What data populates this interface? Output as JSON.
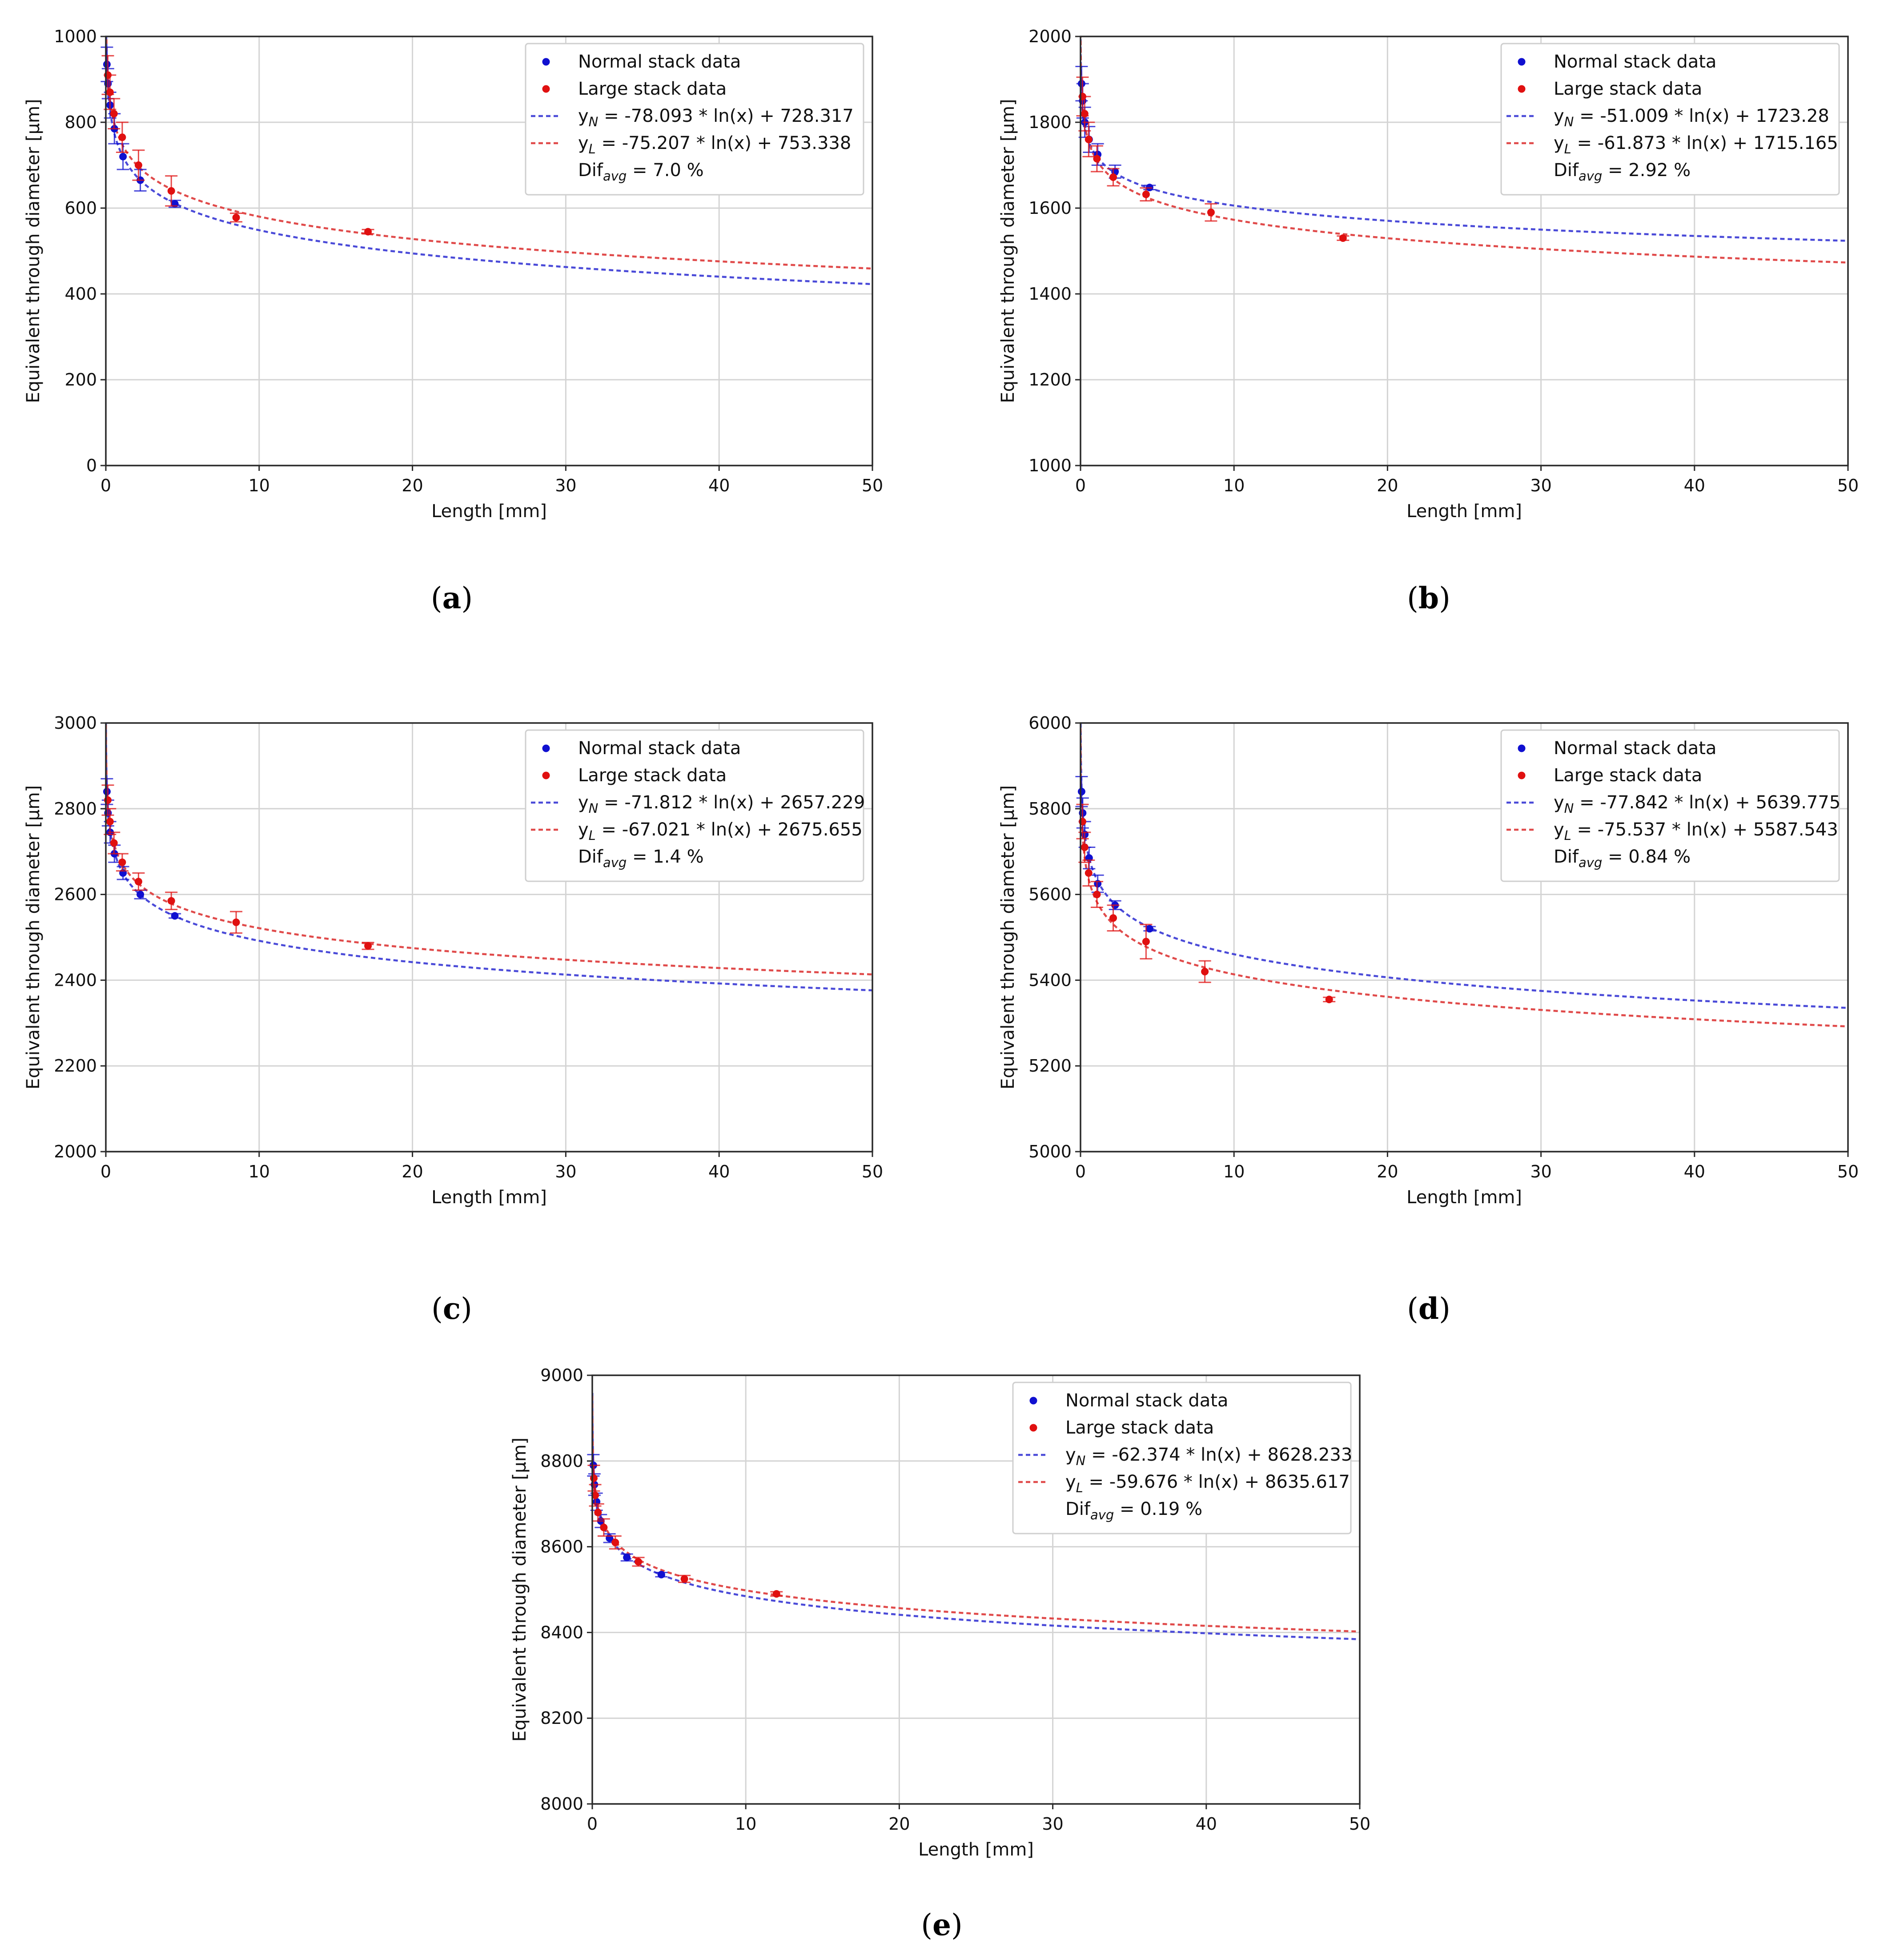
{
  "chart_data": [
    {
      "type": "scatter",
      "panel": "(a)",
      "caption_letter": "a",
      "xlabel": "Length [mm]",
      "ylabel": "Equivalent through diameter [μm]",
      "xlim": [
        0,
        50
      ],
      "ylim": [
        0,
        1000
      ],
      "xticks": [
        0,
        10,
        20,
        30,
        40,
        50
      ],
      "yticks": [
        0,
        200,
        400,
        600,
        800,
        1000
      ],
      "grid": true,
      "legend_position": "top-right",
      "series": [
        {
          "name": "Normal stack data",
          "kind": "points",
          "color": "#1010d0",
          "x": [
            0.07,
            0.14,
            0.28,
            0.56,
            1.12,
            2.25,
            4.5
          ],
          "y": [
            935,
            890,
            840,
            785,
            720,
            665,
            610
          ],
          "err": [
            40,
            35,
            30,
            35,
            30,
            25,
            8
          ]
        },
        {
          "name": "Large stack data",
          "kind": "points",
          "color": "#e01010",
          "x": [
            0.13,
            0.27,
            0.53,
            1.07,
            2.13,
            4.27,
            8.5,
            17.1
          ],
          "y": [
            910,
            870,
            820,
            765,
            700,
            640,
            578,
            545
          ],
          "err": [
            45,
            40,
            35,
            35,
            35,
            35,
            10,
            5
          ]
        },
        {
          "name": "fit_N",
          "kind": "fit",
          "color": "#4a4ad8",
          "a": -78.093,
          "b": 728.317
        },
        {
          "name": "fit_L",
          "kind": "fit",
          "color": "#e04a4a",
          "a": -75.207,
          "b": 753.338
        }
      ],
      "legend": {
        "normal": "Normal stack data",
        "large": "Large stack data",
        "fitN_sub": "N",
        "fitN_eq": " = -78.093 * ln(x) + 728.317",
        "fitL_sub": "L",
        "fitL_eq": " = -75.207 * ln(x) + 753.338",
        "dif_sub": "avg",
        "dif_val": " = 7.0 %"
      }
    },
    {
      "type": "scatter",
      "panel": "(b)",
      "caption_letter": "b",
      "xlabel": "Length [mm]",
      "ylabel": "Equivalent through diameter [μm]",
      "xlim": [
        0,
        50
      ],
      "ylim": [
        1000,
        2000
      ],
      "xticks": [
        0,
        10,
        20,
        30,
        40,
        50
      ],
      "yticks": [
        1000,
        1200,
        1400,
        1600,
        1800,
        2000
      ],
      "grid": true,
      "legend_position": "top-right",
      "series": [
        {
          "name": "Normal stack data",
          "kind": "points",
          "color": "#1010d0",
          "x": [
            0.07,
            0.14,
            0.28,
            0.56,
            1.12,
            2.25,
            4.5
          ],
          "y": [
            1890,
            1850,
            1800,
            1760,
            1725,
            1685,
            1648
          ],
          "err": [
            40,
            40,
            35,
            30,
            25,
            15,
            5
          ]
        },
        {
          "name": "Large stack data",
          "kind": "points",
          "color": "#e01010",
          "x": [
            0.13,
            0.27,
            0.53,
            1.07,
            2.13,
            4.27,
            8.5,
            17.1
          ],
          "y": [
            1860,
            1820,
            1760,
            1715,
            1672,
            1632,
            1590,
            1530
          ],
          "err": [
            45,
            40,
            40,
            30,
            20,
            15,
            20,
            5
          ]
        },
        {
          "name": "fit_N",
          "kind": "fit",
          "color": "#4a4ad8",
          "a": -51.009,
          "b": 1723.28
        },
        {
          "name": "fit_L",
          "kind": "fit",
          "color": "#e04a4a",
          "a": -61.873,
          "b": 1715.165
        }
      ],
      "legend": {
        "normal": "Normal stack data",
        "large": "Large stack data",
        "fitN_sub": "N",
        "fitN_eq": " = -51.009 * ln(x) + 1723.28",
        "fitL_sub": "L",
        "fitL_eq": " = -61.873 * ln(x) + 1715.165",
        "dif_sub": "avg",
        "dif_val": " = 2.92 %"
      }
    },
    {
      "type": "scatter",
      "panel": "(c)",
      "caption_letter": "c",
      "xlabel": "Length [mm]",
      "ylabel": "Equivalent through diameter [μm]",
      "xlim": [
        0,
        50
      ],
      "ylim": [
        2000,
        3000
      ],
      "xticks": [
        0,
        10,
        20,
        30,
        40,
        50
      ],
      "yticks": [
        2000,
        2200,
        2400,
        2600,
        2800,
        3000
      ],
      "grid": true,
      "legend_position": "top-right",
      "series": [
        {
          "name": "Normal stack data",
          "kind": "points",
          "color": "#1010d0",
          "x": [
            0.07,
            0.14,
            0.28,
            0.56,
            1.12,
            2.25,
            4.5
          ],
          "y": [
            2840,
            2790,
            2745,
            2695,
            2650,
            2600,
            2550
          ],
          "err": [
            30,
            30,
            25,
            20,
            15,
            10,
            5
          ]
        },
        {
          "name": "Large stack data",
          "kind": "points",
          "color": "#e01010",
          "x": [
            0.13,
            0.27,
            0.53,
            1.07,
            2.13,
            4.27,
            8.5,
            17.1
          ],
          "y": [
            2820,
            2770,
            2720,
            2675,
            2630,
            2585,
            2535,
            2480
          ],
          "err": [
            35,
            30,
            25,
            20,
            20,
            20,
            25,
            8
          ]
        },
        {
          "name": "fit_N",
          "kind": "fit",
          "color": "#4a4ad8",
          "a": -71.812,
          "b": 2657.229
        },
        {
          "name": "fit_L",
          "kind": "fit",
          "color": "#e04a4a",
          "a": -67.021,
          "b": 2675.655
        }
      ],
      "legend": {
        "normal": "Normal stack data",
        "large": "Large stack data",
        "fitN_sub": "N",
        "fitN_eq": " = -71.812 * ln(x) + 2657.229",
        "fitL_sub": "L",
        "fitL_eq": " = -67.021 * ln(x) + 2675.655",
        "dif_sub": "avg",
        "dif_val": " = 1.4 %"
      }
    },
    {
      "type": "scatter",
      "panel": "(d)",
      "caption_letter": "d",
      "xlabel": "Length [mm]",
      "ylabel": "Equivalent through diameter [μm]",
      "xlim": [
        0,
        50
      ],
      "ylim": [
        5000,
        6000
      ],
      "xticks": [
        0,
        10,
        20,
        30,
        40,
        50
      ],
      "yticks": [
        5000,
        5200,
        5400,
        5600,
        5800,
        6000
      ],
      "grid": true,
      "legend_position": "top-right",
      "series": [
        {
          "name": "Normal stack data",
          "kind": "points",
          "color": "#1010d0",
          "x": [
            0.07,
            0.14,
            0.28,
            0.56,
            1.12,
            2.25,
            4.5
          ],
          "y": [
            5840,
            5790,
            5740,
            5685,
            5625,
            5575,
            5520
          ],
          "err": [
            35,
            35,
            30,
            25,
            20,
            10,
            5
          ]
        },
        {
          "name": "Large stack data",
          "kind": "points",
          "color": "#e01010",
          "x": [
            0.13,
            0.27,
            0.53,
            1.07,
            2.13,
            4.27,
            8.1,
            16.2
          ],
          "y": [
            5770,
            5710,
            5650,
            5600,
            5545,
            5490,
            5420,
            5355
          ],
          "err": [
            40,
            35,
            30,
            30,
            30,
            40,
            25,
            5
          ]
        },
        {
          "name": "fit_N",
          "kind": "fit",
          "color": "#4a4ad8",
          "a": -77.842,
          "b": 5639.775
        },
        {
          "name": "fit_L",
          "kind": "fit",
          "color": "#e04a4a",
          "a": -75.537,
          "b": 5587.543
        }
      ],
      "legend": {
        "normal": "Normal stack data",
        "large": "Large stack data",
        "fitN_sub": "N",
        "fitN_eq": " = -77.842 * ln(x) + 5639.775",
        "fitL_sub": "L",
        "fitL_eq": " = -75.537 * ln(x) + 5587.543",
        "dif_sub": "avg",
        "dif_val": " = 0.84 %"
      }
    },
    {
      "type": "scatter",
      "panel": "(e)",
      "caption_letter": "e",
      "xlabel": "Length [mm]",
      "ylabel": "Equivalent through diameter [μm]",
      "xlim": [
        0,
        50
      ],
      "ylim": [
        8000,
        9000
      ],
      "xticks": [
        0,
        10,
        20,
        30,
        40,
        50
      ],
      "yticks": [
        8000,
        8200,
        8400,
        8600,
        8800,
        9000
      ],
      "grid": true,
      "legend_position": "top-right",
      "series": [
        {
          "name": "Normal stack data",
          "kind": "points",
          "color": "#1010d0",
          "x": [
            0.07,
            0.14,
            0.28,
            0.56,
            1.12,
            2.25,
            4.5
          ],
          "y": [
            8790,
            8745,
            8705,
            8660,
            8620,
            8575,
            8535
          ],
          "err": [
            25,
            25,
            20,
            15,
            10,
            8,
            5
          ]
        },
        {
          "name": "Large stack data",
          "kind": "points",
          "color": "#e01010",
          "x": [
            0.1,
            0.19,
            0.37,
            0.75,
            1.5,
            3.0,
            6.0,
            12.0
          ],
          "y": [
            8760,
            8720,
            8680,
            8645,
            8610,
            8565,
            8525,
            8490
          ],
          "err": [
            30,
            25,
            20,
            20,
            15,
            10,
            8,
            5
          ]
        },
        {
          "name": "fit_N",
          "kind": "fit",
          "color": "#4a4ad8",
          "a": -62.374,
          "b": 8628.233
        },
        {
          "name": "fit_L",
          "kind": "fit",
          "color": "#e04a4a",
          "a": -59.676,
          "b": 8635.617
        }
      ],
      "legend": {
        "normal": "Normal stack data",
        "large": "Large stack data",
        "fitN_sub": "N",
        "fitN_eq": " = -62.374 * ln(x) + 8628.233",
        "fitL_sub": "L",
        "fitL_eq": " = -59.676 * ln(x) + 8635.617",
        "dif_sub": "avg",
        "dif_val": " = 0.19 %"
      }
    }
  ],
  "legend_common": {
    "y_letter": "y",
    "dif_prefix": "Dif"
  }
}
